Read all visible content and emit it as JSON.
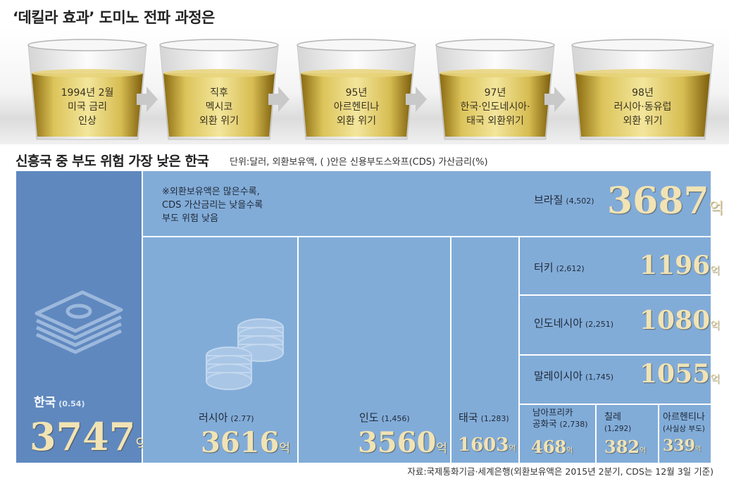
{
  "title_top": "‘데킬라 효과’ 도미노 전파 과정은",
  "glasses": [
    {
      "lines": [
        "1994년 2월",
        "미국 금리",
        "인상"
      ]
    },
    {
      "lines": [
        "직후",
        "멕시코",
        "외환 위기"
      ]
    },
    {
      "lines": [
        "95년",
        "아르헨티나",
        "외환 위기"
      ]
    },
    {
      "lines": [
        "97년",
        "한국·인도네시아·",
        "태국 외환위기"
      ]
    },
    {
      "lines": [
        "98년",
        "러시아·동유럽",
        "외환 위기"
      ]
    }
  ],
  "title_chart": "신흥국 중 부도 위험 가장 낮은 한국",
  "unit_note": "단위:달러, 외환보유액, ( )안은 신용부도스와프(CDS) 가산금리(%)",
  "legend_note": [
    "※외환보유액은 많은수록,",
    "CDS 가산금리는 낮을수록",
    "부도 위험 낮음"
  ],
  "unit_suffix": "억",
  "colors": {
    "korea": "#5f88bf",
    "others": "#82acd8",
    "gold": "#f1e3b4"
  },
  "chart_data": {
    "type": "treemap",
    "countries": [
      {
        "name": "한국",
        "cds": "(0.54)",
        "reserves": "3747",
        "unit": "억"
      },
      {
        "name": "브라질",
        "cds": "(4,502)",
        "reserves": "3687",
        "unit": "억"
      },
      {
        "name": "러시아",
        "cds": "(2.77)",
        "reserves": "3616",
        "unit": "억"
      },
      {
        "name": "인도",
        "cds": "(1,456)",
        "reserves": "3560",
        "unit": "억"
      },
      {
        "name": "태국",
        "cds": "(1,283)",
        "reserves": "1603",
        "unit": "억"
      },
      {
        "name": "터키",
        "cds": "(2,612)",
        "reserves": "1196",
        "unit": "억"
      },
      {
        "name": "인도네시아",
        "cds": "(2,251)",
        "reserves": "1080",
        "unit": "억"
      },
      {
        "name": "말레이시아",
        "cds": "(1,745)",
        "reserves": "1055",
        "unit": "억"
      },
      {
        "name": "남아프리카 공화국",
        "name_lines": [
          "남아프리카",
          "공화국"
        ],
        "cds": "(2,738)",
        "reserves": "468",
        "unit": "억"
      },
      {
        "name": "칠레",
        "cds": "(1,292)",
        "reserves": "382",
        "unit": "억"
      },
      {
        "name": "아르헨티나",
        "cds": "(사실상 부도)",
        "reserves": "339",
        "unit": "억"
      }
    ]
  },
  "source": "자료:국제통화기금·세계은행(외환보유액은 2015년 2분기, CDS는 12월 3일 기준)"
}
